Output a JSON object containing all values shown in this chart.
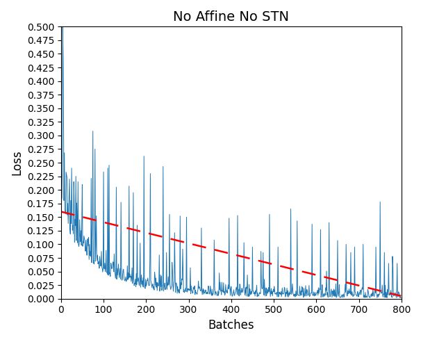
{
  "title": "No Affine No STN",
  "xlabel": "Batches",
  "ylabel": "Loss",
  "xlim": [
    0,
    800
  ],
  "ylim": [
    0.0,
    0.5
  ],
  "yticks": [
    0.0,
    0.025,
    0.05,
    0.075,
    0.1,
    0.125,
    0.15,
    0.175,
    0.2,
    0.225,
    0.25,
    0.275,
    0.3,
    0.325,
    0.35,
    0.375,
    0.4,
    0.425,
    0.45,
    0.475,
    0.5
  ],
  "xticks": [
    0,
    100,
    200,
    300,
    400,
    500,
    600,
    700,
    800
  ],
  "line_color": "#1f77b4",
  "trend_color": "red",
  "trend_start": 0.16,
  "trend_end": 0.005,
  "seed": 42,
  "n_points": 800,
  "title_fontsize": 14,
  "label_fontsize": 12,
  "background_color": "#ffffff"
}
